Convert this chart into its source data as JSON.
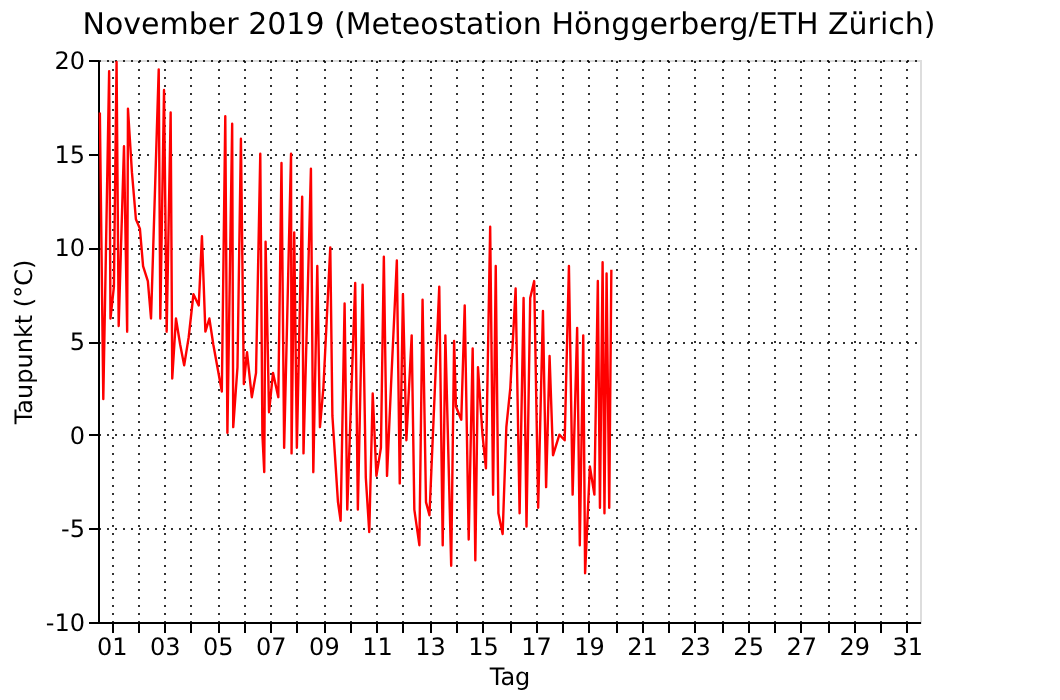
{
  "chart_data": {
    "type": "line",
    "title": "November 2019  (Meteostation Hönggerberg/ETH Zürich)",
    "xlabel": "Tag",
    "ylabel": "Taupunkt (°C)",
    "xlim": [
      0.5,
      31.5
    ],
    "ylim": [
      -10,
      20
    ],
    "xticks": [
      {
        "value": 1,
        "label": "01"
      },
      {
        "value": 2,
        "label": null
      },
      {
        "value": 3,
        "label": "03"
      },
      {
        "value": 4,
        "label": null
      },
      {
        "value": 5,
        "label": "05"
      },
      {
        "value": 6,
        "label": null
      },
      {
        "value": 7,
        "label": "07"
      },
      {
        "value": 8,
        "label": null
      },
      {
        "value": 9,
        "label": "09"
      },
      {
        "value": 10,
        "label": null
      },
      {
        "value": 11,
        "label": "11"
      },
      {
        "value": 12,
        "label": null
      },
      {
        "value": 13,
        "label": "13"
      },
      {
        "value": 14,
        "label": null
      },
      {
        "value": 15,
        "label": "15"
      },
      {
        "value": 16,
        "label": null
      },
      {
        "value": 17,
        "label": "17"
      },
      {
        "value": 18,
        "label": null
      },
      {
        "value": 19,
        "label": "19"
      },
      {
        "value": 20,
        "label": null
      },
      {
        "value": 21,
        "label": "21"
      },
      {
        "value": 22,
        "label": null
      },
      {
        "value": 23,
        "label": "23"
      },
      {
        "value": 24,
        "label": null
      },
      {
        "value": 25,
        "label": "25"
      },
      {
        "value": 26,
        "label": null
      },
      {
        "value": 27,
        "label": "27"
      },
      {
        "value": 28,
        "label": null
      },
      {
        "value": 29,
        "label": "29"
      },
      {
        "value": 30,
        "label": null
      },
      {
        "value": 31,
        "label": "31"
      }
    ],
    "yticks": [
      -10,
      -5,
      0,
      5,
      10,
      15,
      20
    ],
    "grid": true,
    "line_style": "solid",
    "series": [
      {
        "color": "#ff0000",
        "x": [
          0.57,
          0.7,
          0.92,
          0.97,
          1.1,
          1.2,
          1.28,
          1.48,
          1.6,
          1.63,
          1.78,
          1.93,
          2.08,
          2.2,
          2.38,
          2.5,
          2.79,
          2.85,
          2.99,
          3.09,
          3.24,
          3.3,
          3.44,
          3.6,
          3.75,
          3.92,
          4.1,
          4.3,
          4.42,
          4.55,
          4.7,
          4.85,
          5.17,
          5.3,
          5.38,
          5.56,
          5.6,
          5.76,
          5.89,
          6.0,
          6.12,
          6.3,
          6.46,
          6.62,
          6.7,
          6.77,
          6.82,
          6.95,
          7.1,
          7.3,
          7.42,
          7.52,
          7.78,
          7.8,
          7.9,
          8.0,
          8.2,
          8.25,
          8.53,
          8.62,
          8.77,
          8.87,
          9.0,
          9.26,
          9.34,
          9.55,
          9.65,
          9.8,
          9.9,
          10.2,
          10.3,
          10.48,
          10.6,
          10.73,
          10.86,
          11.0,
          11.17,
          11.28,
          11.4,
          11.55,
          11.77,
          11.88,
          12.0,
          12.13,
          12.33,
          12.43,
          12.62,
          12.74,
          12.87,
          13.0,
          13.37,
          13.5,
          13.6,
          13.82,
          13.93,
          14.0,
          14.2,
          14.33,
          14.48,
          14.63,
          14.73,
          14.83,
          15.0,
          15.13,
          15.29,
          15.4,
          15.5,
          15.6,
          15.76,
          15.9,
          16.05,
          16.25,
          16.4,
          16.55,
          16.66,
          16.8,
          16.95,
          17.1,
          17.28,
          17.4,
          17.53,
          17.66,
          17.9,
          18.1,
          18.26,
          18.4,
          18.57,
          18.67,
          18.8,
          18.87,
          19.05,
          19.22,
          19.35,
          19.43,
          19.53,
          19.6,
          19.68,
          19.78,
          19.86
        ],
        "values": [
          17.2,
          1.9,
          19.4,
          6.2,
          7.9,
          19.9,
          5.8,
          15.4,
          5.5,
          17.4,
          14.0,
          11.5,
          11.0,
          9.0,
          8.2,
          6.2,
          19.5,
          6.2,
          18.4,
          5.5,
          17.2,
          3.0,
          6.2,
          4.8,
          3.7,
          5.2,
          7.5,
          6.9,
          10.6,
          5.5,
          6.2,
          4.8,
          2.3,
          17.0,
          0.1,
          16.6,
          0.4,
          3.6,
          15.8,
          2.7,
          4.4,
          2.0,
          3.3,
          15.0,
          0.0,
          -2.0,
          10.3,
          1.2,
          3.3,
          2.0,
          14.5,
          -0.7,
          15.0,
          -1.0,
          10.8,
          -0.7,
          12.7,
          -1.0,
          14.2,
          -2.0,
          9.0,
          0.4,
          2.5,
          10.0,
          1.0,
          -3.6,
          -4.6,
          7.0,
          -4.0,
          8.1,
          -4.0,
          8.0,
          -2.3,
          -5.2,
          2.2,
          -2.2,
          -0.7,
          9.5,
          -2.2,
          2.6,
          9.3,
          -2.6,
          7.5,
          -0.3,
          5.3,
          -4.0,
          -5.9,
          7.2,
          -3.6,
          -4.3,
          7.9,
          -5.9,
          5.3,
          -7.0,
          5.0,
          1.5,
          0.8,
          6.9,
          -5.6,
          4.6,
          -6.7,
          3.6,
          0.0,
          -1.8,
          11.1,
          -3.2,
          9.0,
          -4.2,
          -5.3,
          0.4,
          2.5,
          7.8,
          -4.2,
          7.3,
          -4.9,
          7.3,
          8.2,
          -3.9,
          6.6,
          -2.8,
          4.2,
          -1.1,
          0.0,
          -0.3,
          9.0,
          -3.2,
          5.7,
          -5.9,
          5.3,
          -7.4,
          -1.7,
          -3.2,
          8.2,
          -3.9,
          9.2,
          -4.2,
          8.6,
          -3.9,
          8.8
        ]
      }
    ]
  }
}
